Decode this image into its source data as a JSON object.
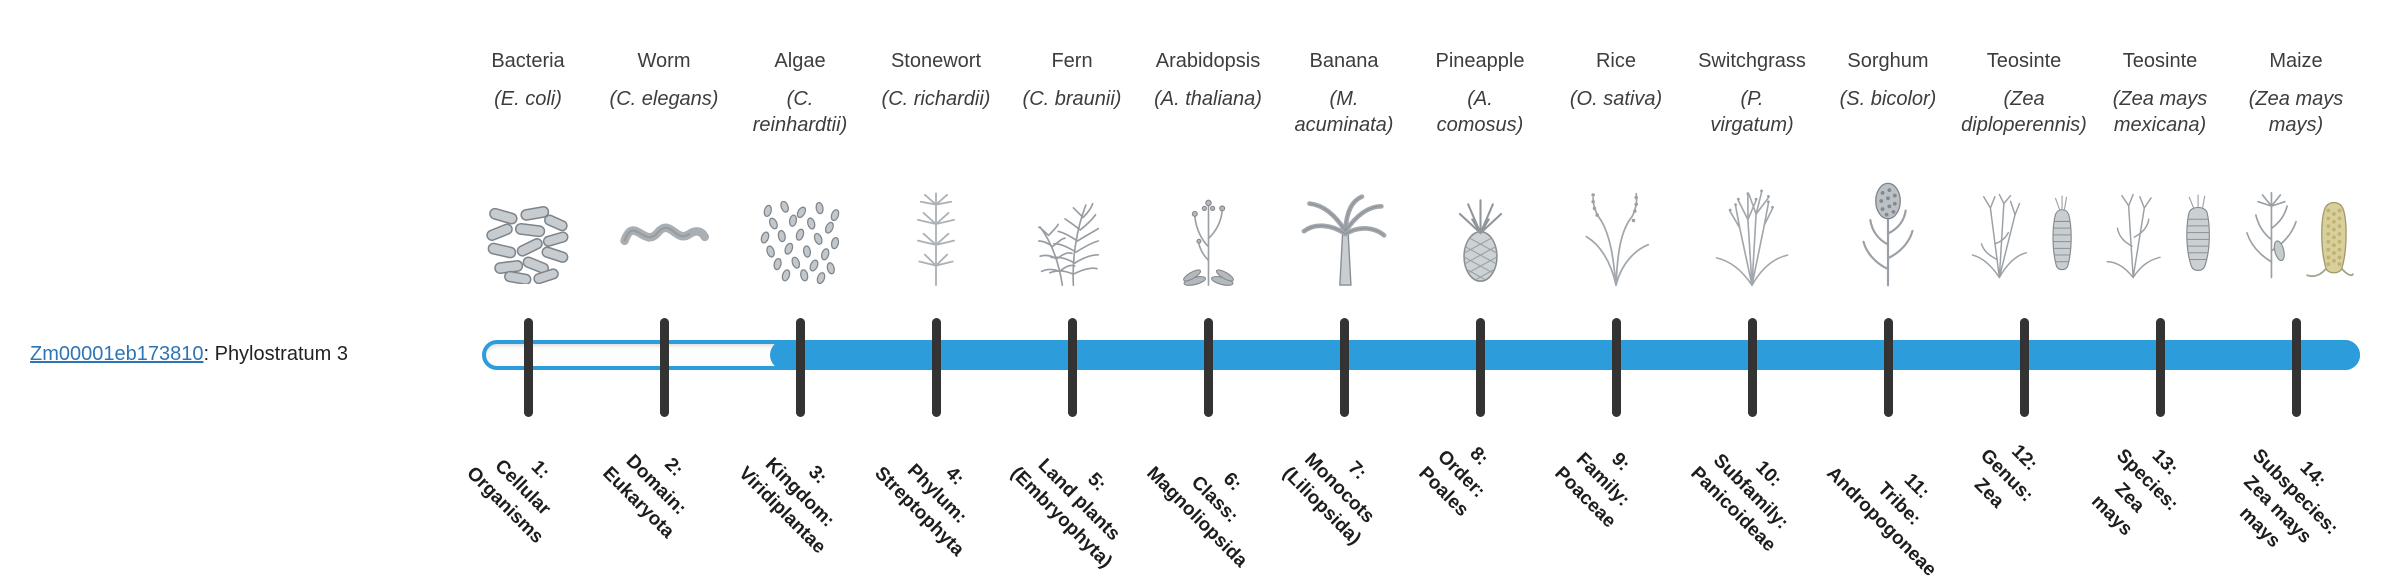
{
  "gene": {
    "id": "Zm00001eb173810",
    "suffix": ": Phylostratum 3",
    "phylostratum": 3
  },
  "colors": {
    "bar_blue": "#2D9CDB",
    "bar_empty": "#fdfdfd",
    "tick": "#333333",
    "link_blue": "#2e75b6",
    "name_text": "#3d3d3d",
    "label_text": "#1d1d1d"
  },
  "bar": {
    "total_strata": 14,
    "fill_starts_at_stratum": 3
  },
  "organisms": [
    {
      "index": 1,
      "common": "Bacteria",
      "sci_lines": [
        "(E. coli)"
      ],
      "icon": "bacteria-icon",
      "stratum_lines": [
        "1:",
        "Cellular",
        "Organisms"
      ]
    },
    {
      "index": 2,
      "common": "Worm",
      "sci_lines": [
        "(C. elegans)"
      ],
      "icon": "worm-icon",
      "stratum_lines": [
        "2:",
        "Domain:",
        "Eukaryota"
      ]
    },
    {
      "index": 3,
      "common": "Algae",
      "sci_lines": [
        "(C.",
        "reinhardtii)"
      ],
      "icon": "algae-icon",
      "stratum_lines": [
        "3:",
        "Kingdom:",
        "Viridiplantae"
      ]
    },
    {
      "index": 4,
      "common": "Stonewort",
      "sci_lines": [
        "(C. richardii)"
      ],
      "icon": "stonewort-icon",
      "stratum_lines": [
        "4:",
        "Phylum:",
        "Streptophyta"
      ]
    },
    {
      "index": 5,
      "common": "Fern",
      "sci_lines": [
        "(C. braunii)"
      ],
      "icon": "fern-icon",
      "stratum_lines": [
        "5:",
        "Land plants",
        "(Embryophyta)"
      ]
    },
    {
      "index": 6,
      "common": "Arabidopsis",
      "sci_lines": [
        "(A. thaliana)"
      ],
      "icon": "arabidopsis-icon",
      "stratum_lines": [
        "6:",
        "Class:",
        "Magnoliopsida"
      ]
    },
    {
      "index": 7,
      "common": "Banana",
      "sci_lines": [
        "(M.",
        "acuminata)"
      ],
      "icon": "banana-icon",
      "stratum_lines": [
        "7:",
        "Monocots",
        "(Liliopsida)"
      ]
    },
    {
      "index": 8,
      "common": "Pineapple",
      "sci_lines": [
        "(A.",
        "comosus)"
      ],
      "icon": "pineapple-icon",
      "stratum_lines": [
        "8:",
        "Order:",
        "Poales"
      ]
    },
    {
      "index": 9,
      "common": "Rice",
      "sci_lines": [
        "(O. sativa)"
      ],
      "icon": "rice-icon",
      "stratum_lines": [
        "9:",
        "Family:",
        "Poaceae"
      ]
    },
    {
      "index": 10,
      "common": "Switchgrass",
      "sci_lines": [
        "(P.",
        "virgatum)"
      ],
      "icon": "switchgrass-icon",
      "stratum_lines": [
        "10:",
        "Subfamily:",
        "Panicoideae"
      ]
    },
    {
      "index": 11,
      "common": "Sorghum",
      "sci_lines": [
        "(S. bicolor)"
      ],
      "icon": "sorghum-icon",
      "stratum_lines": [
        "11:",
        "Tribe:",
        "Andropogoneae"
      ]
    },
    {
      "index": 12,
      "common": "Teosinte",
      "sci_lines": [
        "(Zea",
        "diploperennis)"
      ],
      "icon": "teosinte-diplo-icon",
      "stratum_lines": [
        "12:",
        "Genus:",
        "Zea"
      ]
    },
    {
      "index": 13,
      "common": "Teosinte",
      "sci_lines": [
        "(Zea mays",
        "mexicana)"
      ],
      "icon": "teosinte-mex-icon",
      "stratum_lines": [
        "13:",
        "Species:",
        "Zea",
        "mays"
      ]
    },
    {
      "index": 14,
      "common": "Maize",
      "sci_lines": [
        "(Zea mays",
        "mays)"
      ],
      "icon": "maize-icon",
      "stratum_lines": [
        "14:",
        "Subspecies:",
        "Zea mays",
        "mays"
      ]
    }
  ]
}
